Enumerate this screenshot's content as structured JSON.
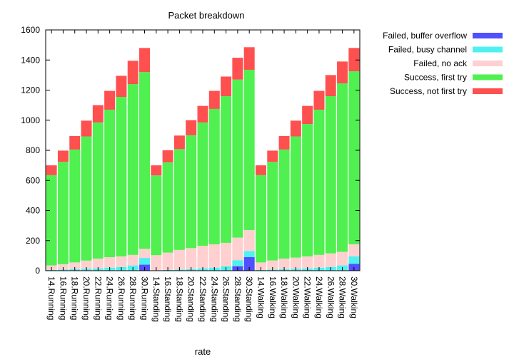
{
  "chart_data": {
    "type": "bar",
    "stacked": true,
    "title": "Packet breakdown",
    "xlabel": "rate",
    "ylabel": "",
    "ylim": [
      0,
      1600
    ],
    "yticks": [
      0,
      200,
      400,
      600,
      800,
      1000,
      1200,
      1400,
      1600
    ],
    "grid": false,
    "legend_position": "top-right outside",
    "categories": [
      "14.Running",
      "16.Running",
      "18.Running",
      "20.Running",
      "22.Running",
      "24.Running",
      "26.Running",
      "28.Running",
      "30.Running",
      "14.Standing",
      "16.Standing",
      "18.Standing",
      "20.Standing",
      "22.Standing",
      "24.Standing",
      "26.Standing",
      "28.Standing",
      "30.Standing",
      "14.Walking",
      "16.Walking",
      "18.Walking",
      "20.Walking",
      "22.Walking",
      "24.Walking",
      "26.Walking",
      "28.Walking",
      "30.Walking"
    ],
    "series": [
      {
        "name": "Failed, buffer overflow",
        "color": "#5050ff",
        "values": [
          0,
          0,
          0,
          0,
          0,
          0,
          0,
          0,
          40,
          0,
          0,
          0,
          0,
          0,
          0,
          0,
          30,
          90,
          0,
          0,
          0,
          0,
          0,
          0,
          0,
          0,
          45
        ]
      },
      {
        "name": "Failed, busy channel",
        "color": "#50f0f0",
        "values": [
          5,
          8,
          10,
          12,
          15,
          20,
          25,
          35,
          45,
          3,
          5,
          8,
          10,
          15,
          20,
          30,
          40,
          40,
          5,
          8,
          10,
          12,
          15,
          20,
          25,
          35,
          50
        ]
      },
      {
        "name": "Failed, no ack",
        "color": "#ffd0d0",
        "values": [
          30,
          35,
          45,
          55,
          65,
          70,
          70,
          70,
          60,
          100,
          115,
          130,
          140,
          150,
          155,
          155,
          150,
          140,
          50,
          60,
          70,
          75,
          80,
          85,
          90,
          90,
          80
        ]
      },
      {
        "name": "Success, first try",
        "color": "#50f050",
        "values": [
          600,
          680,
          750,
          825,
          905,
          980,
          1060,
          1135,
          1175,
          530,
          600,
          670,
          750,
          820,
          900,
          975,
          1050,
          1065,
          580,
          655,
          725,
          805,
          880,
          965,
          1045,
          1120,
          1150
        ]
      },
      {
        "name": "Success, not first try",
        "color": "#ff5050",
        "values": [
          65,
          75,
          90,
          105,
          115,
          125,
          140,
          155,
          160,
          67,
          80,
          90,
          100,
          110,
          120,
          130,
          145,
          150,
          65,
          75,
          90,
          105,
          120,
          125,
          140,
          145,
          155
        ]
      }
    ]
  }
}
